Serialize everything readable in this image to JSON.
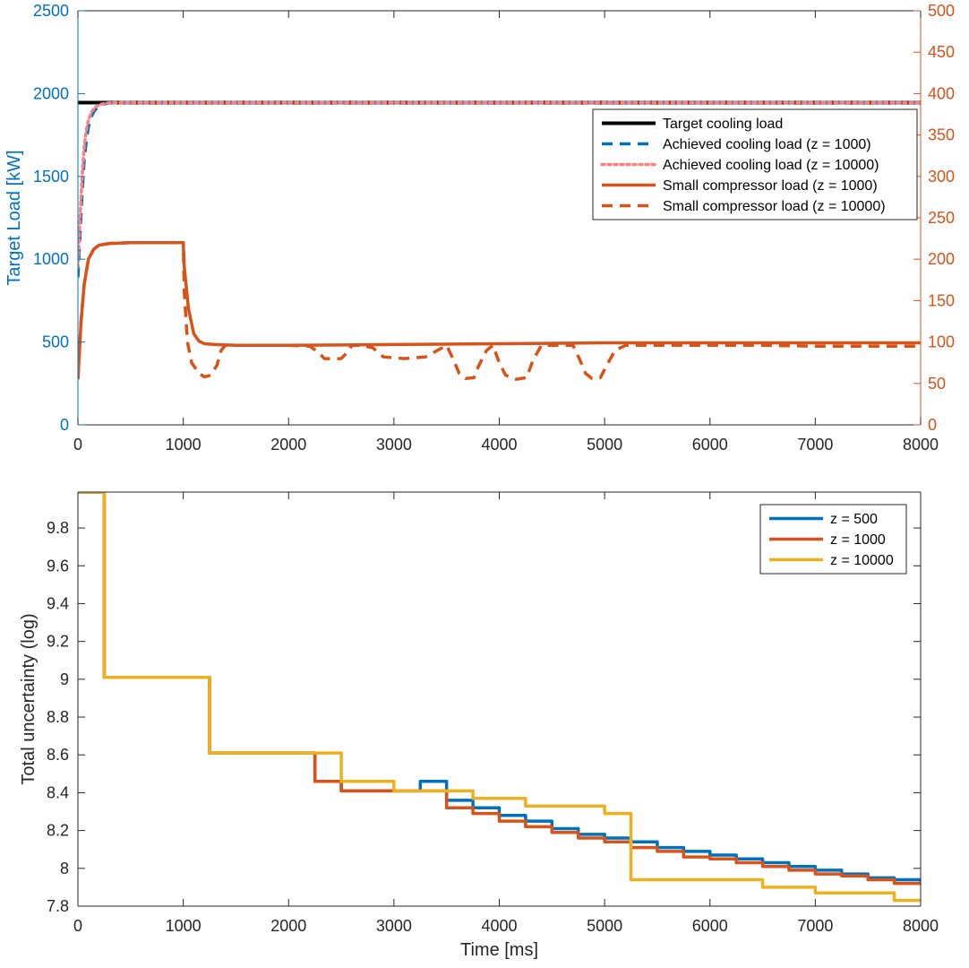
{
  "chart_data": [
    {
      "type": "line",
      "title": "",
      "xlabel": "",
      "ylabel": "Target Load [kW]",
      "xlim": [
        0,
        8000
      ],
      "ylim": [
        0,
        2500
      ],
      "y2lim": [
        0,
        500
      ],
      "x_ticks": [
        "0",
        "1000",
        "2000",
        "3000",
        "4000",
        "5000",
        "6000",
        "7000",
        "8000"
      ],
      "y_ticks": [
        "0",
        "500",
        "1000",
        "1500",
        "2000",
        "2500"
      ],
      "y2_ticks": [
        "0",
        "50",
        "100",
        "150",
        "200",
        "250",
        "300",
        "350",
        "400",
        "450",
        "500"
      ],
      "grid": false,
      "legend_position": "top-right",
      "colors": {
        "left_axis": "#0072BD",
        "right_axis": "#D95319"
      },
      "series": [
        {
          "name": "Target cooling load",
          "axis": "left",
          "color": "#000000",
          "style": "solid",
          "x": [
            0,
            8000
          ],
          "y": [
            1945,
            1945
          ]
        },
        {
          "name": "Achieved cooling load (z = 1000)",
          "axis": "left",
          "color": "#0072BD",
          "style": "dashed",
          "x": [
            0,
            20,
            40,
            60,
            80,
            100,
            130,
            160,
            200,
            250,
            300,
            400,
            500,
            8000
          ],
          "y": [
            890,
            1150,
            1400,
            1600,
            1720,
            1800,
            1865,
            1900,
            1925,
            1938,
            1943,
            1945,
            1945,
            1945
          ]
        },
        {
          "name": "Achieved cooling load (z = 10000)",
          "axis": "left",
          "color": "#FF7F7F",
          "style": "dotted",
          "x": [
            0,
            20,
            40,
            60,
            80,
            100,
            130,
            160,
            200,
            250,
            300,
            400,
            500,
            8000
          ],
          "y": [
            950,
            1250,
            1500,
            1680,
            1780,
            1840,
            1890,
            1915,
            1932,
            1940,
            1944,
            1945,
            1945,
            1945
          ]
        },
        {
          "name": "Small compressor load (z = 1000)",
          "axis": "right",
          "color": "#D95319",
          "style": "solid",
          "x": [
            0,
            30,
            60,
            100,
            150,
            200,
            300,
            500,
            1000,
            1010,
            1050,
            1100,
            1150,
            1200,
            1300,
            1500,
            2000,
            3000,
            4000,
            5000,
            6000,
            7000,
            8000
          ],
          "y": [
            55,
            125,
            170,
            200,
            212,
            217,
            219,
            220,
            220,
            190,
            140,
            110,
            101,
            98,
            97,
            96,
            96,
            97,
            98,
            99,
            99,
            99,
            99
          ]
        },
        {
          "name": "Small compressor load (z = 10000)",
          "axis": "right",
          "color": "#D95319",
          "style": "dashed",
          "x": [
            0,
            30,
            60,
            100,
            150,
            200,
            300,
            500,
            1000,
            1010,
            1040,
            1080,
            1150,
            1200,
            1260,
            1320,
            1360,
            1400,
            1500,
            2000,
            2200,
            2280,
            2340,
            2400,
            2500,
            2560,
            2600,
            2700,
            2800,
            2900,
            3100,
            3300,
            3500,
            3560,
            3620,
            3680,
            3760,
            3800,
            3880,
            3940,
            4000,
            4060,
            4160,
            4260,
            4320,
            4400,
            4700,
            4760,
            4820,
            4880,
            4960,
            5020,
            5100,
            5200,
            5300,
            5600,
            6000,
            6500,
            7000,
            7500,
            8000
          ],
          "y": [
            55,
            125,
            170,
            200,
            212,
            217,
            219,
            220,
            220,
            160,
            100,
            75,
            62,
            58,
            60,
            72,
            90,
            96,
            96,
            96,
            95,
            88,
            80,
            80,
            80,
            88,
            96,
            96,
            93,
            82,
            80,
            82,
            96,
            80,
            62,
            56,
            57,
            70,
            90,
            96,
            75,
            60,
            55,
            57,
            78,
            96,
            96,
            80,
            62,
            56,
            57,
            72,
            90,
            96,
            96,
            96,
            96,
            96,
            95,
            95,
            95
          ]
        }
      ]
    },
    {
      "type": "line",
      "title": "",
      "xlabel": "Time [ms]",
      "ylabel": "Total uncertainty (log)",
      "xlim": [
        0,
        8000
      ],
      "ylim": [
        7.8,
        9.99
      ],
      "x_ticks": [
        "0",
        "1000",
        "2000",
        "3000",
        "4000",
        "5000",
        "6000",
        "7000",
        "8000"
      ],
      "y_ticks": [
        "7.8",
        "8",
        "8.2",
        "8.4",
        "8.6",
        "8.8",
        "9",
        "9.2",
        "9.4",
        "9.6",
        "9.8"
      ],
      "grid": false,
      "legend_position": "top-right",
      "series": [
        {
          "name": "z = 500",
          "color": "#0072BD",
          "style": "step",
          "x": [
            0,
            250,
            1250,
            2250,
            2500,
            3000,
            3250,
            3500,
            3750,
            4000,
            4250,
            4500,
            4750,
            5000,
            5250,
            5500,
            5750,
            6000,
            6250,
            6500,
            6750,
            7000,
            7250,
            7500,
            7750,
            8000
          ],
          "y": [
            9.99,
            9.01,
            8.61,
            8.46,
            8.41,
            8.41,
            8.46,
            8.36,
            8.32,
            8.28,
            8.25,
            8.21,
            8.18,
            8.16,
            8.14,
            8.11,
            8.09,
            8.07,
            8.05,
            8.03,
            8.01,
            7.99,
            7.97,
            7.95,
            7.94,
            7.93
          ]
        },
        {
          "name": "z = 1000",
          "color": "#D95319",
          "style": "step",
          "x": [
            0,
            250,
            1250,
            2250,
            2500,
            3000,
            3500,
            3750,
            4000,
            4250,
            4500,
            4750,
            5000,
            5250,
            5500,
            5750,
            6000,
            6250,
            6500,
            6750,
            7000,
            7250,
            7500,
            7750,
            8000
          ],
          "y": [
            9.99,
            9.01,
            8.61,
            8.46,
            8.41,
            8.41,
            8.32,
            8.29,
            8.25,
            8.22,
            8.19,
            8.16,
            8.14,
            8.11,
            8.09,
            8.06,
            8.05,
            8.03,
            8.01,
            7.99,
            7.97,
            7.96,
            7.94,
            7.92,
            7.92
          ]
        },
        {
          "name": "z = 10000",
          "color": "#EDB120",
          "style": "step",
          "x": [
            0,
            250,
            1250,
            2500,
            3000,
            3750,
            4250,
            5000,
            5250,
            6500,
            7000,
            7750,
            8000
          ],
          "y": [
            9.99,
            9.01,
            8.61,
            8.46,
            8.41,
            8.37,
            8.33,
            8.29,
            7.94,
            7.9,
            7.87,
            7.83,
            7.83
          ]
        }
      ]
    }
  ]
}
